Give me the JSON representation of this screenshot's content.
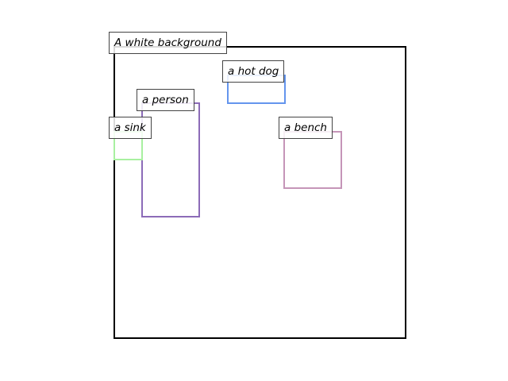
{
  "regions": [
    {
      "id": "background",
      "caption": "A white background",
      "color": "#000000"
    },
    {
      "id": "hot-dog",
      "caption": "a hot dog",
      "color": "#6495ED"
    },
    {
      "id": "person",
      "caption": "a person",
      "color": "#8C6BB8"
    },
    {
      "id": "sink",
      "caption": "a sink",
      "color": "#A8F0A0"
    },
    {
      "id": "bench",
      "caption": "a bench",
      "color": "#C595B8"
    }
  ]
}
